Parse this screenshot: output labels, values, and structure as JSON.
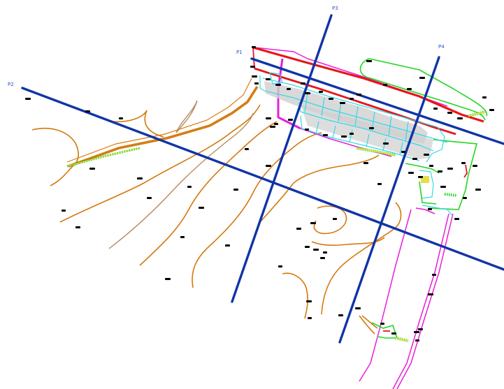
{
  "profiles": [
    {
      "id": "p1",
      "label": "P1"
    },
    {
      "id": "p2",
      "label": "P2"
    },
    {
      "id": "p3",
      "label": "P3"
    },
    {
      "id": "p4",
      "label": "P4"
    }
  ],
  "colors": {
    "section_line": "#1034a6",
    "contour": "#d4780e",
    "contour_light": "#b58a5e",
    "road_major": "#d67d12",
    "boundary_red": "#e8151c",
    "boundary_magenta": "#e81fd8",
    "outline_green": "#21d622",
    "structure_cyan": "#34d9e6",
    "fill_grey": "#cfcfcf",
    "hatch_yellow": "#e3df4b",
    "annotation": "#000000"
  }
}
